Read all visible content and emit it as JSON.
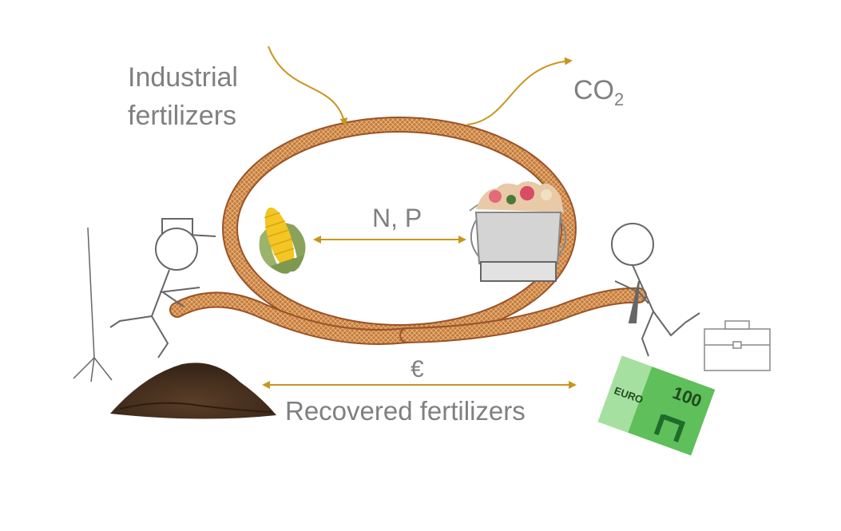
{
  "labels": {
    "industrial_line1": "Industrial",
    "industrial_line2": "fertilizers",
    "co2_main": "CO",
    "co2_sub": "2",
    "nutrients": "N, P",
    "euro_symbol": "€",
    "recovered": "Recovered fertilizers",
    "banknote_currency": "EURO",
    "banknote_value": "100"
  },
  "colors": {
    "arrow": "#c8961e",
    "loop_rope": "#b5652c",
    "loop_rope_light": "#d99a5a",
    "label_text": "#808080",
    "banknote": "#5fbf5a",
    "soil": "#4a3322",
    "figure_stroke": "#666666"
  },
  "icons": [
    "corn-icon",
    "food-waste-bucket-icon",
    "soil-pile-icon",
    "banknote-icon",
    "briefcase-icon",
    "farmer-figure-icon",
    "businessperson-figure-icon",
    "pitchfork-icon"
  ]
}
